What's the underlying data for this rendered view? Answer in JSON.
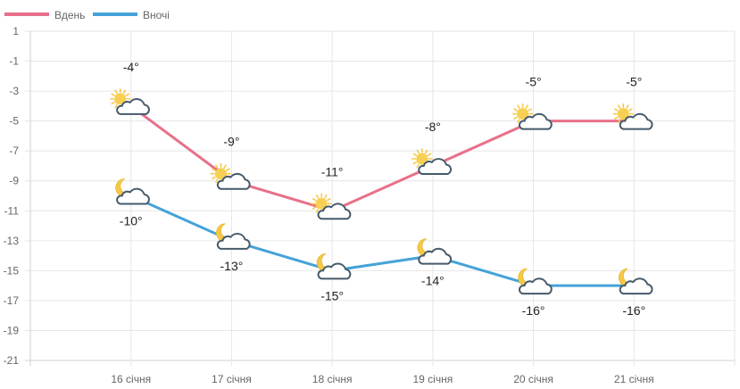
{
  "chart_data": {
    "type": "line",
    "categories": [
      "16 січня",
      "17 січня",
      "18 січня",
      "19 січня",
      "20 січня",
      "21 січня"
    ],
    "series": [
      {
        "name": "Вдень",
        "color": "#e8708a",
        "values": [
          -4,
          -9,
          -11,
          -8,
          -5,
          -5
        ],
        "labels": [
          "-4°",
          "-9°",
          "-11°",
          "-8°",
          "-5°",
          "-5°"
        ],
        "icons": [
          "sun-cloud-icon",
          "sun-cloud-icon",
          "sun-cloud-icon",
          "sun-cloud-icon",
          "sun-cloud-icon",
          "sun-cloud-icon"
        ]
      },
      {
        "name": "Вночі",
        "color": "#45a3d8",
        "values": [
          -10,
          -13,
          -15,
          -14,
          -16,
          -16
        ],
        "labels": [
          "-10°",
          "-13°",
          "-15°",
          "-14°",
          "-16°",
          "-16°"
        ],
        "icons": [
          "moon-cloud-icon",
          "moon-cloud-icon",
          "moon-cloud-icon",
          "moon-cloud-icon",
          "moon-cloud-icon",
          "moon-cloud-icon"
        ]
      }
    ],
    "yticks": [
      "1",
      "-1",
      "-3",
      "-5",
      "-7",
      "-9",
      "-11",
      "-13",
      "-15",
      "-17",
      "-19",
      "-21"
    ],
    "ylim": [
      -21,
      1
    ],
    "grid": true,
    "legend_position": "top-left"
  }
}
